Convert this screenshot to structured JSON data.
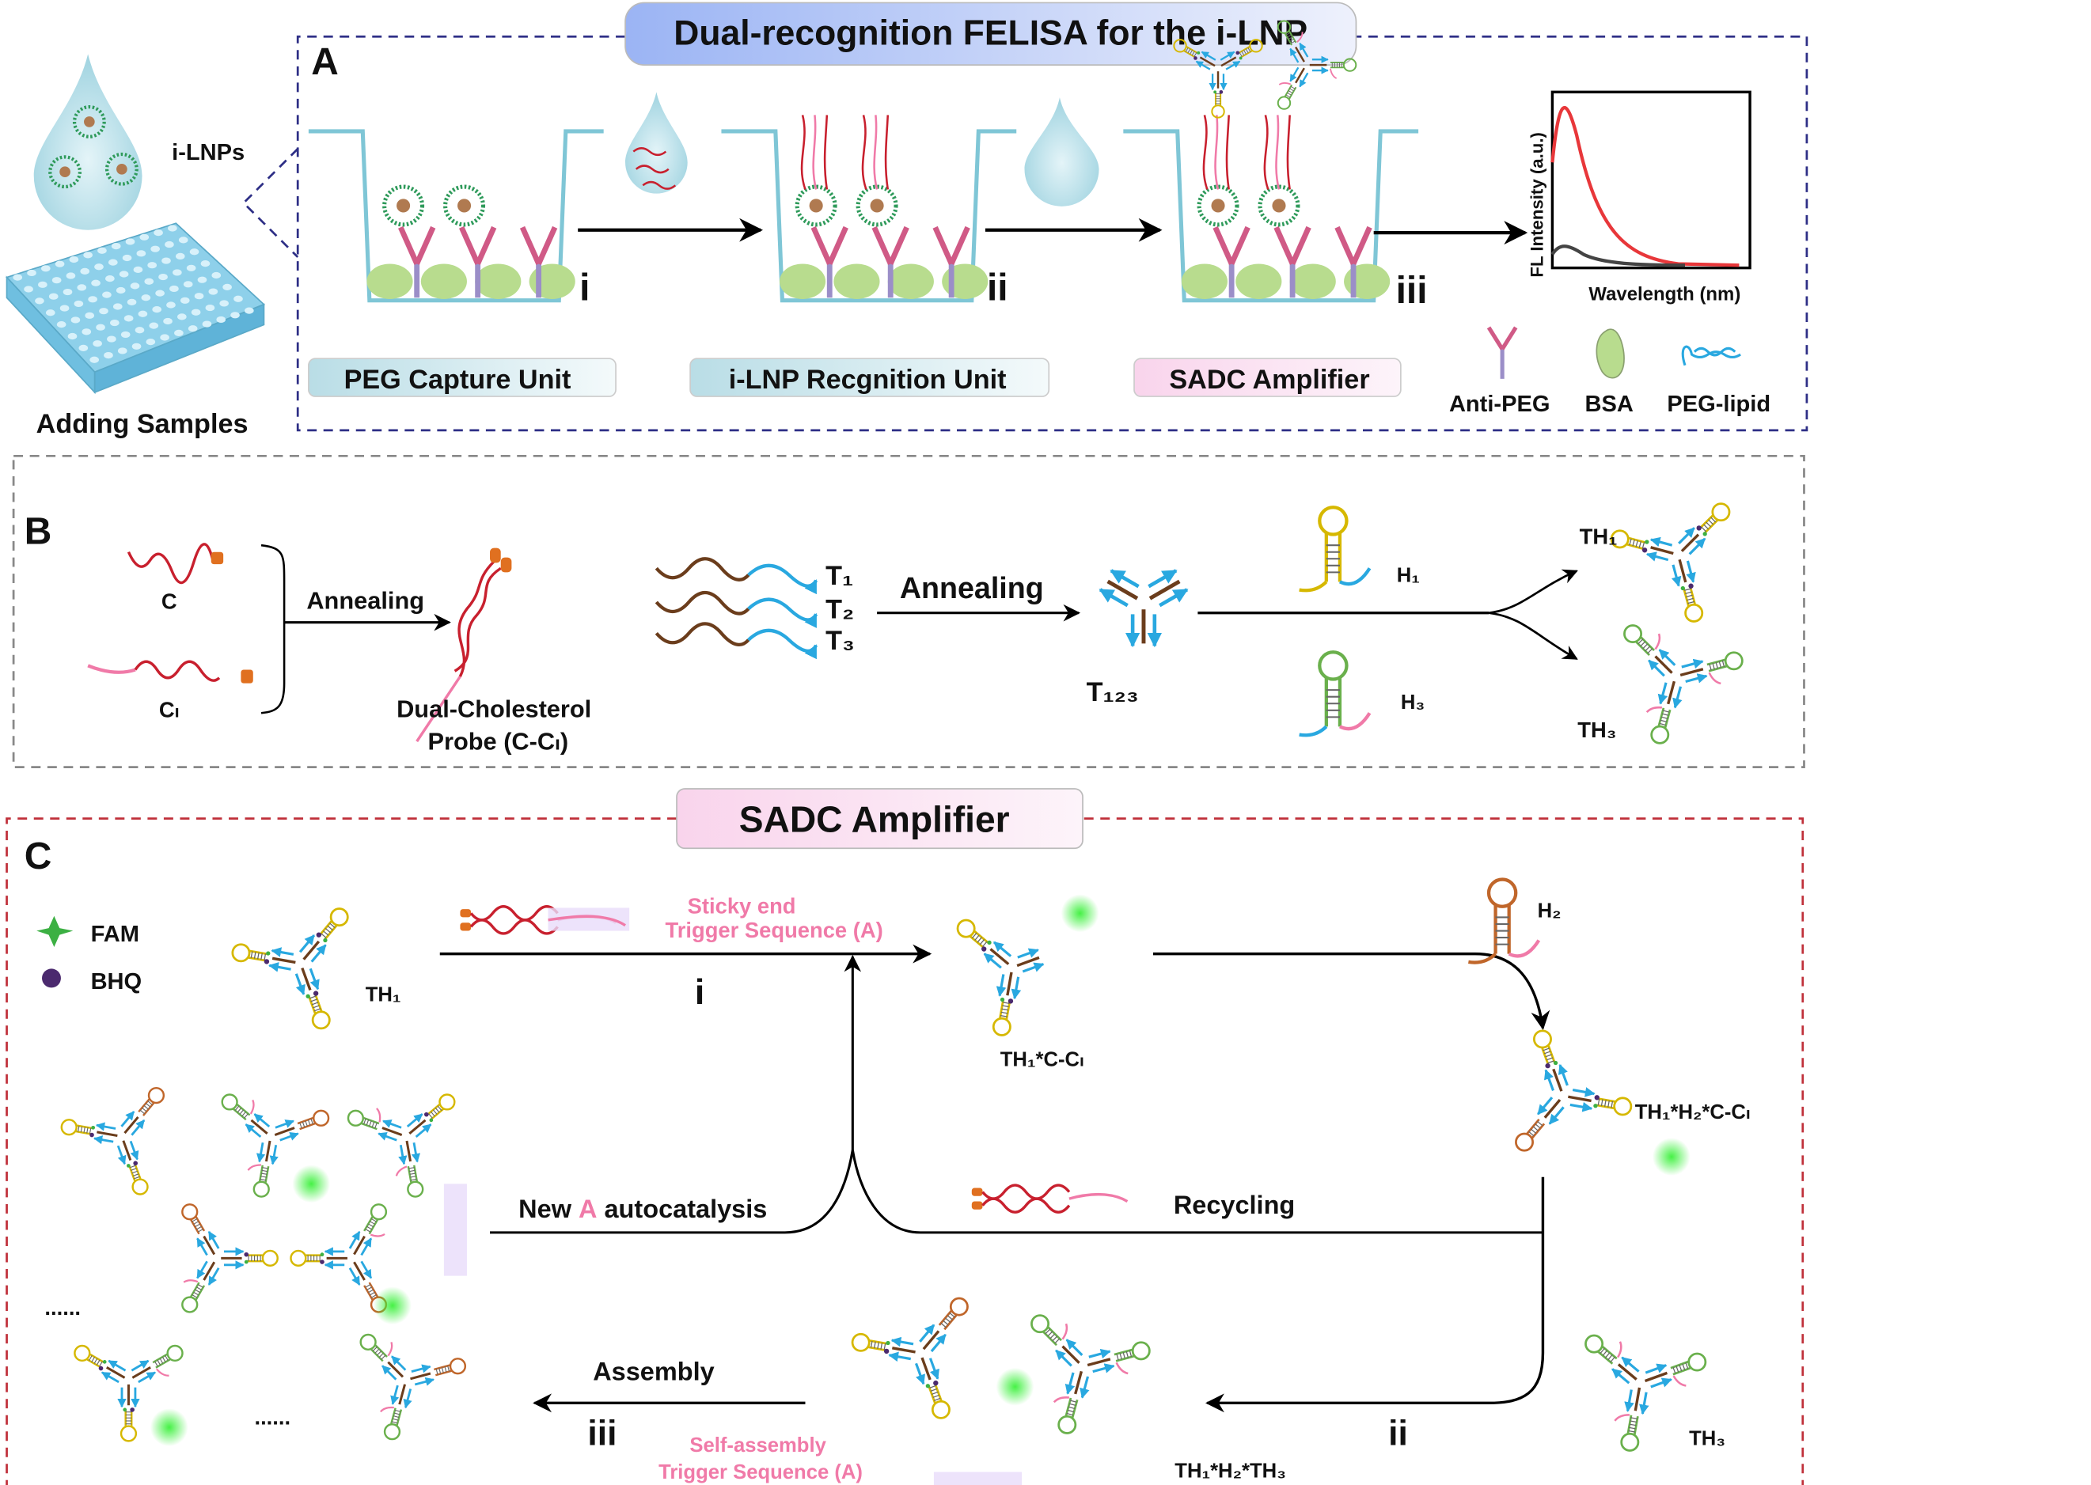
{
  "panelA": {
    "title": "Dual-recognition FELISA for the i-LNP",
    "letter": "A",
    "ilnps_label": "i-LNPs",
    "adding_samples": "Adding Samples",
    "steps": [
      "i",
      "ii",
      "iii"
    ],
    "units": [
      "PEG Capture Unit",
      "i-LNP Recgnition Unit",
      "SADC Amplifier"
    ],
    "inset": {
      "ylabel": "FL Intensity (a.u.)",
      "xlabel": "Wavelength (nm)"
    },
    "legend": [
      "Anti-PEG",
      "BSA",
      "PEG-lipid"
    ]
  },
  "panelB": {
    "letter": "B",
    "c_label": "C",
    "cl_label": "Cₗ",
    "annealing1": "Annealing",
    "probe_line1": "Dual-Cholesterol",
    "probe_line2": "Probe (C-Cₗ)",
    "t_labels": [
      "T₁",
      "T₂",
      "T₃"
    ],
    "annealing2": "Annealing",
    "t123": "T₁₂₃",
    "h1": "H₁",
    "h3": "H₃",
    "th1": "TH₁",
    "th3": "TH₃"
  },
  "panelC": {
    "title": "SADC Amplifier",
    "letter": "C",
    "legend": [
      "FAM",
      "BHQ"
    ],
    "th1": "TH₁",
    "sticky_end": "Sticky end",
    "trigger_a": "Trigger Sequence (A)",
    "step_i": "i",
    "th1_c_cl": "TH₁*C-Cₗ",
    "h2": "H₂",
    "th1_h2_c_cl": "TH₁*H₂*C-Cₗ",
    "autocatalysis": {
      "pre": "New ",
      "a": "A",
      "post": " autocatalysis"
    },
    "recycling": "Recycling",
    "step_ii": "ii",
    "th3": "TH₃",
    "assembly": "Assembly",
    "step_iii": "iii",
    "self_assembly": "Self-assembly",
    "trigger_a2": "Trigger Sequence  (A)",
    "th1_h2_th3": "TH₁*H₂*TH₃",
    "ellipsis": "......"
  },
  "colors": {
    "navy_frame": "#2e2f86",
    "gray_frame": "#888888",
    "red_frame": "#c0303a",
    "title_a_bg": "#a9bff5",
    "unit_bg": "#cde8ee",
    "sadc_bg": "#fbe0f0",
    "dna_blue": "#29a8e0",
    "dna_brown": "#6b3d1c",
    "h1_yellow": "#d6b800",
    "h3_green": "#6ab04c",
    "h2_orange": "#c0662a",
    "pink": "#f07aa8",
    "fam_green": "#3cb043",
    "bhq_purple": "#4b2a6e",
    "signal_red": "#e8373a"
  }
}
